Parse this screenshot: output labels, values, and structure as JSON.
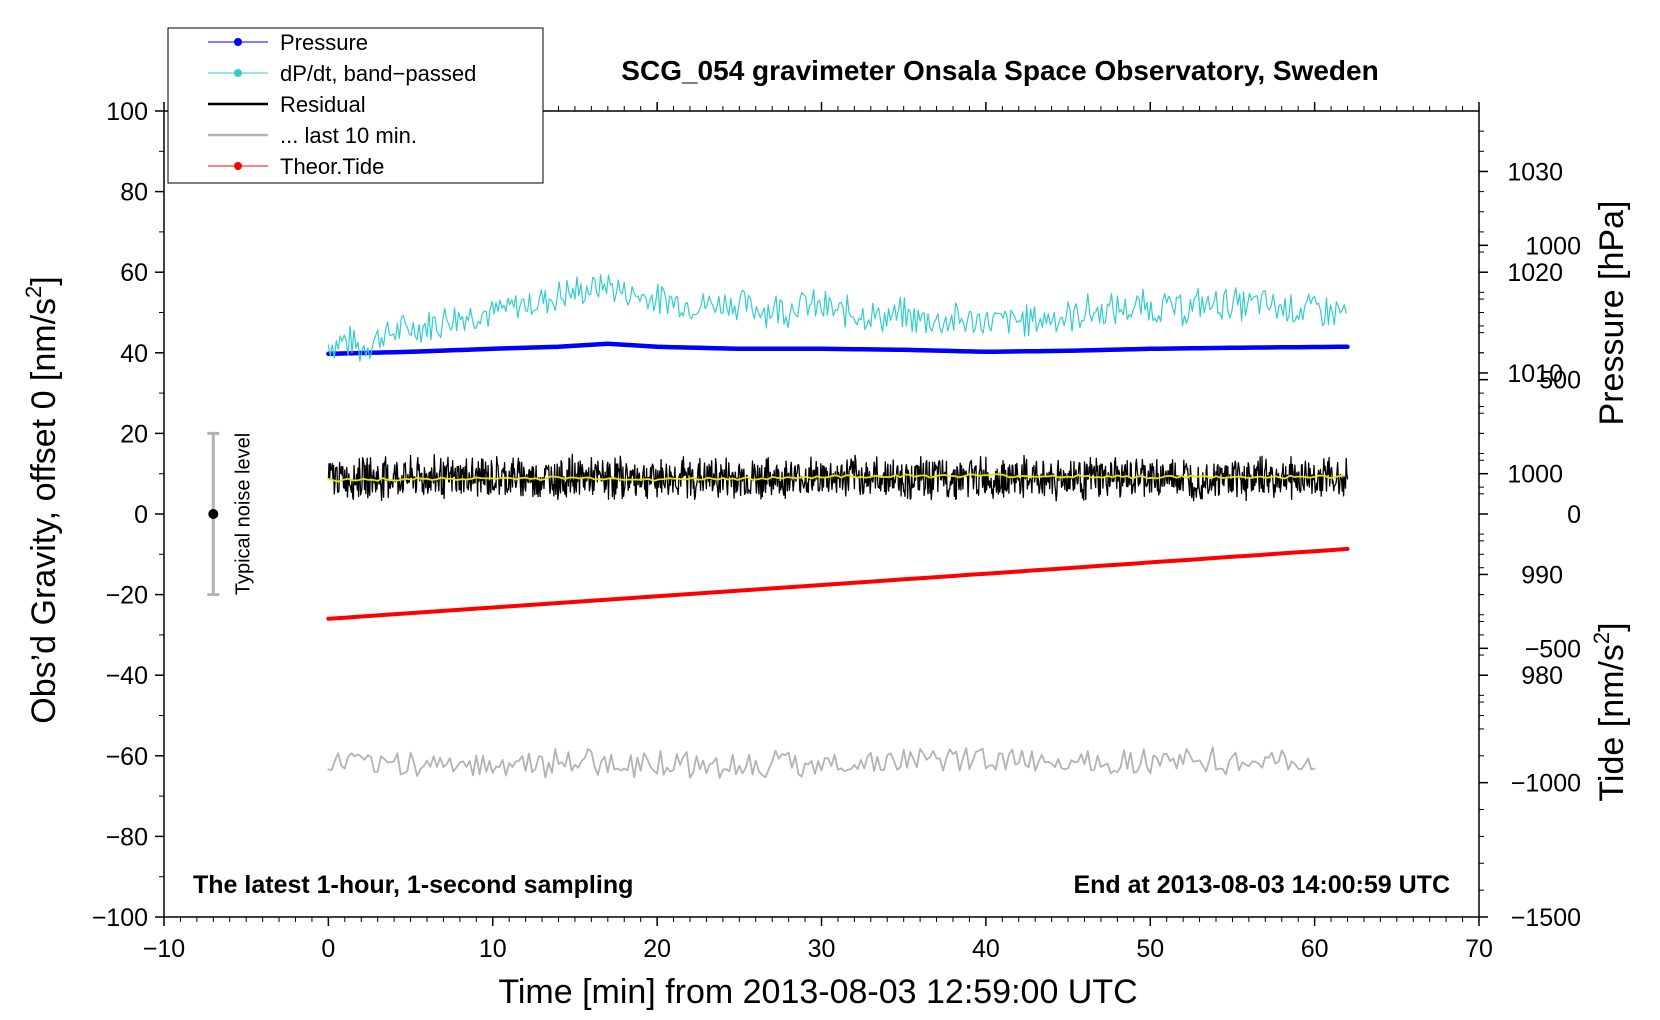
{
  "chart_data": {
    "type": "line",
    "title": "SCG_054 gravimeter Onsala Space Observatory, Sweden",
    "xlabel": "Time [min] from 2013-08-03 12:59:00 UTC",
    "ylabel_left_main": "Obs’d Gravity, offset 0 [nm/s",
    "ylabel_left_sup": "2",
    "ylabel_left_end": "]",
    "ylabel_right_pressure": "Pressure [hPa]",
    "ylabel_right_tide_main": "Tide [nm/s",
    "ylabel_right_tide_sup": "2",
    "ylabel_right_tide_end": "]",
    "xlim": [
      -10,
      70
    ],
    "ylim_left": [
      -100,
      100
    ],
    "ylim_pressure": [
      956,
      1036
    ],
    "ylim_tide": [
      -1500,
      1500
    ],
    "x_ticks": [
      -10,
      0,
      10,
      20,
      30,
      40,
      50,
      60,
      70
    ],
    "x_tick_labels": [
      "−10",
      "0",
      "10",
      "20",
      "30",
      "40",
      "50",
      "60",
      "70"
    ],
    "y_left_ticks": [
      -100,
      -80,
      -60,
      -40,
      -20,
      0,
      20,
      40,
      60,
      80,
      100
    ],
    "y_left_tick_labels": [
      "−100",
      "−80",
      "−60",
      "−40",
      "−20",
      "0",
      "20",
      "40",
      "60",
      "80",
      "100"
    ],
    "y_pressure_ticks": [
      980,
      990,
      1000,
      1010,
      1020,
      1030
    ],
    "y_pressure_tick_labels": [
      "980",
      "990",
      "1000",
      "1010",
      "1020",
      "1030"
    ],
    "y_tide_ticks": [
      -1500,
      -1000,
      -500,
      0,
      500,
      1000
    ],
    "y_tide_tick_labels": [
      "−1500",
      "−1000",
      "−500",
      "0",
      "500",
      "1000"
    ],
    "annotation_left": "The latest 1-hour, 1-second sampling",
    "annotation_right": "End at 2013-08-03 14:00:59 UTC",
    "noise_bar": {
      "x": -7,
      "center": 0,
      "half_range": 20,
      "label": "Typical noise level"
    },
    "legend": {
      "position": "top-left",
      "entries": [
        {
          "label": "Pressure",
          "color": "#0000ff",
          "marker": true
        },
        {
          "label": "dP/dt, band−passed",
          "color": "#33cccc",
          "marker": true
        },
        {
          "label": "Residual",
          "color": "#000000",
          "marker": false
        },
        {
          "label": "... last 10 min.",
          "color": "#b3b3b3",
          "marker": false
        },
        {
          "label": "Theor.Tide",
          "color": "#ff0000",
          "marker": true
        }
      ]
    },
    "series": [
      {
        "name": "Pressure",
        "axis": "pressure",
        "color": "#0000ff",
        "x": [
          0,
          5,
          10,
          14,
          17,
          20,
          25,
          30,
          35,
          40,
          45,
          50,
          55,
          62
        ],
        "values": [
          1011.9,
          1012.1,
          1012.4,
          1012.6,
          1012.9,
          1012.6,
          1012.4,
          1012.4,
          1012.3,
          1012.1,
          1012.2,
          1012.4,
          1012.5,
          1012.6
        ]
      },
      {
        "name": "dP/dt, band-passed",
        "axis": "left",
        "color": "#33cccc",
        "x": [
          0,
          1,
          2,
          3,
          4,
          5,
          6,
          7,
          8,
          9,
          10,
          11,
          12,
          13,
          14,
          15,
          16,
          17,
          18,
          19,
          20,
          21,
          22,
          23,
          24,
          25,
          26,
          27,
          28,
          29,
          30,
          31,
          32,
          33,
          34,
          35,
          36,
          37,
          38,
          39,
          40,
          41,
          42,
          43,
          44,
          45,
          46,
          47,
          48,
          49,
          50,
          51,
          52,
          53,
          54,
          55,
          56,
          57,
          58,
          59,
          60,
          61,
          62
        ],
        "values": [
          42,
          43,
          41,
          44,
          45,
          46,
          47,
          48,
          49,
          50,
          50,
          51,
          52,
          53,
          54,
          55,
          56,
          57,
          55,
          54,
          53,
          53,
          52,
          52,
          52,
          52,
          51,
          51,
          51,
          52,
          51,
          50,
          50,
          49,
          49,
          49,
          48,
          48,
          48,
          48,
          48,
          48,
          48,
          48,
          49,
          49,
          50,
          50,
          51,
          51,
          51,
          51,
          51,
          52,
          52,
          52,
          52,
          52,
          51,
          51,
          51,
          50,
          50
        ]
      },
      {
        "name": "Residual",
        "axis": "left",
        "color": "#000000",
        "x": [
          0,
          10,
          20,
          30,
          40,
          50,
          62
        ],
        "values": [
          9,
          9,
          9,
          9,
          9,
          9,
          9
        ]
      },
      {
        "name": "Residual smoothed",
        "axis": "left",
        "color": "#e6e600",
        "x": [
          0,
          5,
          10,
          15,
          20,
          25,
          30,
          35,
          40,
          45,
          50,
          55,
          62
        ],
        "values": [
          8.5,
          8.6,
          8.8,
          8.9,
          8.6,
          8.8,
          9.2,
          9.4,
          9.5,
          9.3,
          9.2,
          9.1,
          9.2
        ]
      },
      {
        "name": "... last 10 min.",
        "axis": "left",
        "color": "#b3b3b3",
        "x": [
          0,
          10,
          20,
          30,
          40,
          50,
          60
        ],
        "values": [
          -62,
          -62,
          -62,
          -62,
          -61,
          -61,
          -62
        ]
      },
      {
        "name": "Theor.Tide",
        "axis": "tide",
        "color": "#ff0000",
        "x": [
          0,
          62
        ],
        "values": [
          -390,
          -130
        ]
      }
    ]
  }
}
